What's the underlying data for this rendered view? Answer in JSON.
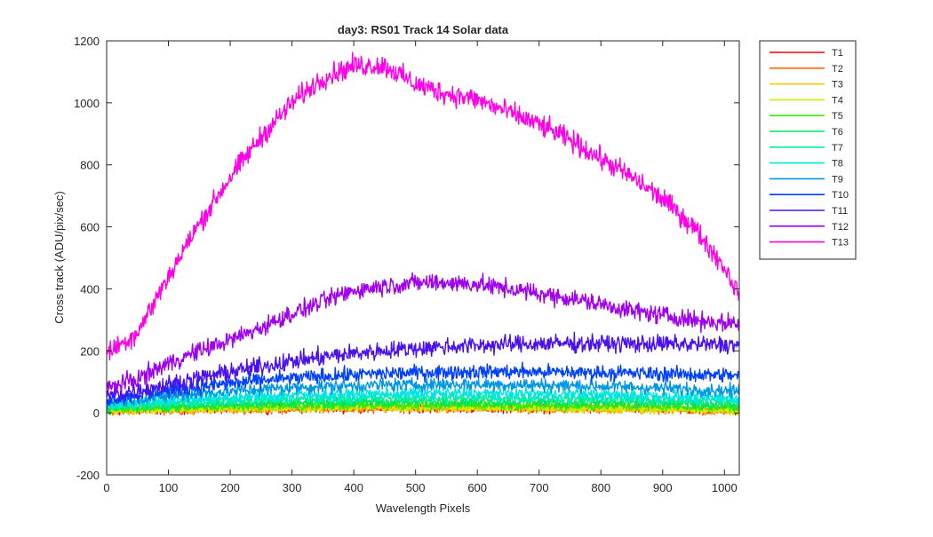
{
  "chart_data": {
    "type": "line",
    "title": "day3: RS01  Track 14 Solar data",
    "xlabel": "Wavelength Pixels",
    "ylabel": "Cross track (ADU/pix/sec)",
    "xlim": [
      0,
      1024
    ],
    "ylim": [
      -200,
      1200
    ],
    "x_ticks": [
      0,
      100,
      200,
      300,
      400,
      500,
      600,
      700,
      800,
      900,
      1000
    ],
    "y_ticks": [
      -200,
      0,
      200,
      400,
      600,
      800,
      1000,
      1200
    ],
    "grid": false,
    "legend_position": "outside-top-right",
    "x_knots": [
      0,
      50,
      100,
      150,
      200,
      250,
      300,
      350,
      400,
      450,
      500,
      550,
      600,
      650,
      700,
      750,
      800,
      850,
      900,
      950,
      1000,
      1024
    ],
    "series": [
      {
        "name": "T1",
        "color": "#ff0000",
        "noise": 12,
        "values": [
          5,
          8,
          10,
          11,
          12,
          13,
          14,
          14,
          15,
          15,
          15,
          15,
          15,
          14,
          14,
          13,
          12,
          11,
          10,
          9,
          8,
          7
        ]
      },
      {
        "name": "T2",
        "color": "#ff6a00",
        "noise": 12,
        "values": [
          5,
          8,
          10,
          11,
          12,
          13,
          14,
          15,
          15,
          15,
          15,
          15,
          15,
          14,
          14,
          13,
          12,
          11,
          10,
          9,
          8,
          7
        ]
      },
      {
        "name": "T3",
        "color": "#ffc400",
        "noise": 12,
        "values": [
          6,
          9,
          11,
          12,
          13,
          14,
          15,
          16,
          16,
          16,
          16,
          16,
          16,
          15,
          15,
          14,
          13,
          12,
          11,
          10,
          9,
          8
        ]
      },
      {
        "name": "T4",
        "color": "#c8f000",
        "noise": 12,
        "values": [
          7,
          10,
          12,
          13,
          14,
          15,
          16,
          17,
          17,
          17,
          17,
          17,
          17,
          16,
          16,
          15,
          14,
          13,
          12,
          11,
          10,
          9
        ]
      },
      {
        "name": "T5",
        "color": "#3ce600",
        "noise": 13,
        "values": [
          10,
          14,
          17,
          19,
          21,
          22,
          23,
          24,
          25,
          25,
          25,
          25,
          25,
          24,
          24,
          23,
          22,
          21,
          20,
          19,
          17,
          16
        ]
      },
      {
        "name": "T6",
        "color": "#00e650",
        "noise": 14,
        "values": [
          15,
          20,
          24,
          27,
          29,
          31,
          33,
          34,
          35,
          36,
          36,
          36,
          36,
          35,
          35,
          34,
          33,
          32,
          31,
          29,
          27,
          26
        ]
      },
      {
        "name": "T7",
        "color": "#00eeaa",
        "noise": 15,
        "values": [
          20,
          27,
          32,
          36,
          39,
          42,
          44,
          46,
          47,
          48,
          49,
          49,
          49,
          48,
          48,
          47,
          46,
          44,
          42,
          40,
          38,
          36
        ]
      },
      {
        "name": "T8",
        "color": "#00e4e4",
        "noise": 16,
        "values": [
          25,
          33,
          40,
          45,
          50,
          54,
          57,
          59,
          61,
          62,
          63,
          63,
          63,
          62,
          62,
          61,
          59,
          57,
          55,
          52,
          49,
          47
        ]
      },
      {
        "name": "T9",
        "color": "#0096e6",
        "noise": 18,
        "values": [
          35,
          45,
          55,
          63,
          70,
          76,
          81,
          85,
          88,
          90,
          91,
          92,
          92,
          91,
          90,
          88,
          86,
          83,
          80,
          76,
          72,
          70
        ]
      },
      {
        "name": "T10",
        "color": "#0040ff",
        "noise": 20,
        "values": [
          45,
          58,
          72,
          84,
          95,
          104,
          112,
          118,
          123,
          127,
          130,
          132,
          133,
          133,
          132,
          131,
          130,
          128,
          126,
          124,
          122,
          120
        ]
      },
      {
        "name": "T11",
        "color": "#4a10f0",
        "noise": 24,
        "values": [
          55,
          72,
          92,
          112,
          132,
          150,
          166,
          180,
          192,
          201,
          208,
          214,
          218,
          221,
          223,
          224,
          224,
          223,
          222,
          221,
          220,
          220
        ]
      },
      {
        "name": "T12",
        "color": "#a000f0",
        "noise": 25,
        "values": [
          80,
          110,
          160,
          200,
          235,
          275,
          320,
          360,
          395,
          410,
          420,
          420,
          415,
          400,
          385,
          370,
          350,
          330,
          315,
          300,
          290,
          290
        ]
      },
      {
        "name": "T13",
        "color": "#ff00e6",
        "noise": 30,
        "values": [
          190,
          260,
          440,
          610,
          760,
          890,
          1000,
          1080,
          1120,
          1120,
          1060,
          1030,
          1010,
          970,
          930,
          880,
          820,
          760,
          690,
          600,
          470,
          380
        ]
      }
    ]
  }
}
